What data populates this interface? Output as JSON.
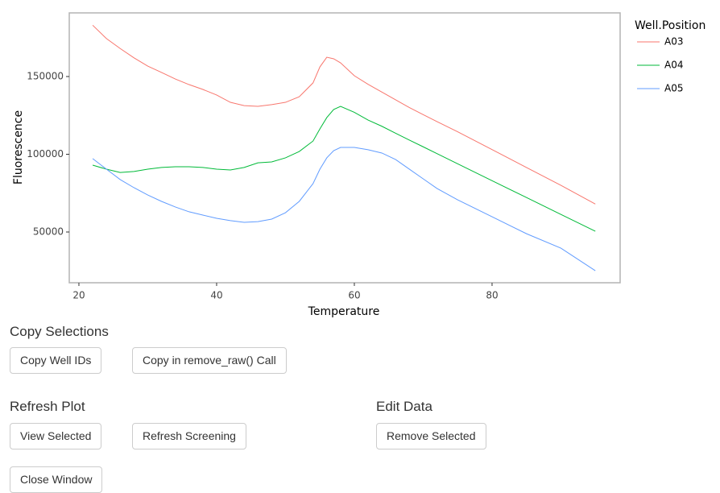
{
  "chart_data": {
    "type": "line",
    "x_label": "Temperature",
    "y_label": "Fluorescence",
    "legend_title": "Well.Position",
    "x": [
      22,
      24,
      26,
      28,
      30,
      32,
      34,
      36,
      38,
      40,
      42,
      44,
      46,
      48,
      50,
      52,
      54,
      55,
      56,
      57,
      58,
      60,
      62,
      64,
      66,
      68,
      70,
      72,
      75,
      80,
      85,
      90,
      95
    ],
    "series": [
      {
        "name": "A03",
        "color": "#F8766D",
        "values": [
          183000,
          174400,
          168000,
          162000,
          156700,
          152600,
          148400,
          144800,
          141700,
          138100,
          133400,
          131300,
          130800,
          131900,
          133400,
          137000,
          145900,
          156200,
          162400,
          161400,
          158800,
          150500,
          145000,
          140000,
          135000,
          130000,
          125500,
          121000,
          114500,
          103000,
          91500,
          80000,
          68000
        ]
      },
      {
        "name": "A04",
        "color": "#00BA38",
        "values": [
          93000,
          90400,
          88300,
          88900,
          90400,
          91500,
          92000,
          92000,
          91500,
          90400,
          89900,
          91500,
          94500,
          95100,
          97700,
          101800,
          108500,
          116300,
          123600,
          128800,
          130800,
          127000,
          122000,
          118000,
          113500,
          109100,
          104800,
          100400,
          93900,
          83000,
          72200,
          61300,
          50500
        ]
      },
      {
        "name": "A05",
        "color": "#619CFF",
        "values": [
          97200,
          90400,
          83700,
          78500,
          73800,
          69700,
          66100,
          63000,
          60900,
          58800,
          57300,
          56200,
          56700,
          58300,
          62400,
          69700,
          81100,
          90400,
          97700,
          102300,
          104400,
          104400,
          102900,
          100800,
          96600,
          90400,
          84200,
          78000,
          70700,
          59800,
          48900,
          39600,
          25100
        ]
      }
    ],
    "xlim": [
      18.6,
      98.6
    ],
    "xticks": [
      20,
      40,
      60,
      80
    ],
    "ylim": [
      17360,
      190930
    ],
    "yticks": [
      50000,
      100000,
      150000
    ],
    "grid": false,
    "legend": "right"
  },
  "copy_selections": {
    "title": "Copy Selections",
    "buttons": [
      "Copy Well IDs",
      "Copy in remove_raw() Call"
    ]
  },
  "refresh_plot": {
    "title": "Refresh Plot",
    "buttons": [
      "View Selected",
      "Refresh Screening"
    ]
  },
  "edit_data": {
    "title": "Edit Data",
    "buttons": [
      "Remove Selected"
    ]
  },
  "close_button": "Close Window"
}
